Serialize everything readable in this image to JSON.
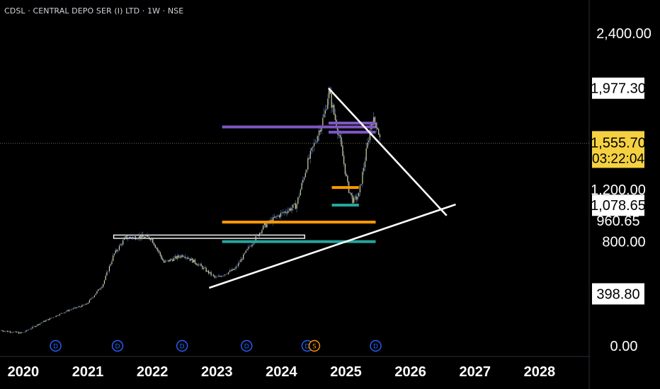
{
  "header": {
    "symbol_line": "CDSL · CENTRAL DEPO SER (I) LTD · 1W · NSE"
  },
  "colors": {
    "background": "#000000",
    "candle": "#d9d9a0",
    "candle_shadow": "#5b7fd6",
    "trendline": "#ffffff",
    "support_zone": "#ffffff",
    "purple_level": "#7e57c2",
    "orange_level": "#ff9800",
    "teal_level": "#26a69a",
    "price_tag_bg": "#ffffff",
    "current_price_bg": "#f5d142",
    "event_marker": "#2962ff",
    "split_marker": "#ff9800"
  },
  "chart_data": {
    "type": "candlestick",
    "timeframe": "1W",
    "x_axis": {
      "ticks": [
        "2020",
        "2021",
        "2022",
        "2023",
        "2024",
        "2025",
        "2026",
        "2027",
        "2028"
      ]
    },
    "y_axis": {
      "ticks": [
        "2,400.00",
        "800.00",
        "0.00"
      ],
      "ylim": [
        -60,
        2600
      ]
    },
    "price_labels": [
      {
        "text": "1,977.30",
        "value": 1977.3,
        "style": "tag"
      },
      {
        "text": "1,200.00",
        "value": 1200,
        "style": "plain"
      },
      {
        "text": "1,078.65",
        "value": 1078.65,
        "style": "tag"
      },
      {
        "text": "960.65",
        "value": 960.65,
        "style": "plain"
      },
      {
        "text": "398.80",
        "value": 398.8,
        "style": "tag"
      }
    ],
    "current_price": {
      "value": 1555.7,
      "text": "1,555.70",
      "countdown": "03:22:04"
    },
    "price_path": [
      {
        "t": 2019.88,
        "p": 118
      },
      {
        "t": 2020.2,
        "p": 98
      },
      {
        "t": 2020.5,
        "p": 180
      },
      {
        "t": 2020.9,
        "p": 270
      },
      {
        "t": 2021.2,
        "p": 320
      },
      {
        "t": 2021.45,
        "p": 470
      },
      {
        "t": 2021.62,
        "p": 700
      },
      {
        "t": 2021.8,
        "p": 830
      },
      {
        "t": 2021.98,
        "p": 840
      },
      {
        "t": 2022.2,
        "p": 830
      },
      {
        "t": 2022.4,
        "p": 640
      },
      {
        "t": 2022.7,
        "p": 700
      },
      {
        "t": 2022.95,
        "p": 620
      },
      {
        "t": 2023.2,
        "p": 520
      },
      {
        "t": 2023.5,
        "p": 590
      },
      {
        "t": 2023.72,
        "p": 760
      },
      {
        "t": 2023.95,
        "p": 920
      },
      {
        "t": 2024.2,
        "p": 1010
      },
      {
        "t": 2024.45,
        "p": 1080
      },
      {
        "t": 2024.62,
        "p": 1400
      },
      {
        "t": 2024.78,
        "p": 1620
      },
      {
        "t": 2024.9,
        "p": 1800
      },
      {
        "t": 2024.95,
        "p": 1960
      },
      {
        "t": 2025.12,
        "p": 1600
      },
      {
        "t": 2025.25,
        "p": 1220
      },
      {
        "t": 2025.33,
        "p": 1110
      },
      {
        "t": 2025.42,
        "p": 1160
      },
      {
        "t": 2025.52,
        "p": 1450
      },
      {
        "t": 2025.62,
        "p": 1740
      },
      {
        "t": 2025.7,
        "p": 1700
      },
      {
        "t": 2025.76,
        "p": 1556
      }
    ],
    "drawings": {
      "trendlines": [
        {
          "from": {
            "t": 2024.95,
            "p": 1977
          },
          "to": {
            "t": 2026.78,
            "p": 1000
          }
        },
        {
          "from": {
            "t": 2023.1,
            "p": 445
          },
          "to": {
            "t": 2026.92,
            "p": 1085
          }
        }
      ],
      "zones": [
        {
          "t1": 2021.62,
          "t2": 2024.58,
          "p1": 850,
          "p2": 825
        }
      ],
      "levels": [
        {
          "color": "purple",
          "t1": 2023.3,
          "t2": 2025.68,
          "p": 1680
        },
        {
          "color": "purple",
          "t1": 2024.95,
          "t2": 2025.68,
          "p": 1710
        },
        {
          "color": "purple",
          "t1": 2024.95,
          "t2": 2025.68,
          "p": 1640
        },
        {
          "color": "orange",
          "t1": 2023.3,
          "t2": 2025.68,
          "p": 950
        },
        {
          "color": "teal",
          "t1": 2023.3,
          "t2": 2025.68,
          "p": 800
        },
        {
          "color": "orange",
          "t1": 2025.0,
          "t2": 2025.42,
          "p": 1215
        },
        {
          "color": "teal",
          "t1": 2025.0,
          "t2": 2025.42,
          "p": 1080
        }
      ]
    },
    "event_markers": [
      {
        "t": 2020.72,
        "label": "D"
      },
      {
        "t": 2021.68,
        "label": "D"
      },
      {
        "t": 2022.68,
        "label": "D"
      },
      {
        "t": 2023.68,
        "label": "D"
      },
      {
        "t": 2024.62,
        "label": "D"
      },
      {
        "t": 2024.73,
        "label": "S"
      },
      {
        "t": 2025.68,
        "label": "D"
      }
    ]
  }
}
